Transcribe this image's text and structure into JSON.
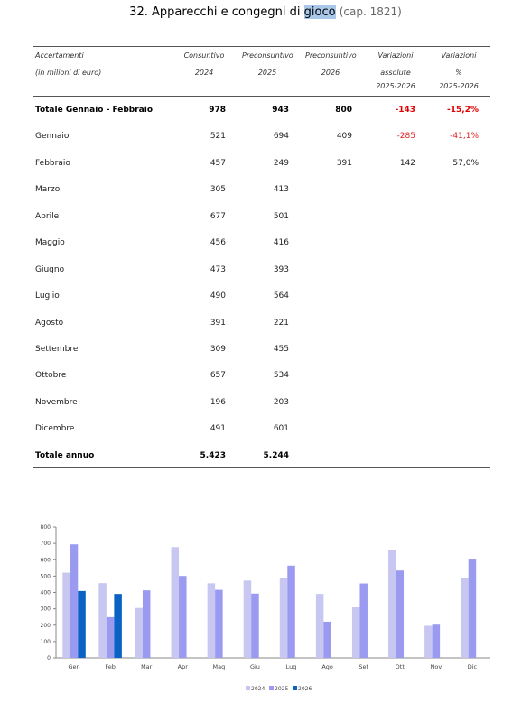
{
  "title": {
    "prefix": "32. Apparecchi e congegni di ",
    "highlight": "gioco",
    "cap": "(cap. 1821)"
  },
  "header": {
    "col0": [
      "Accertamenti",
      "(in milioni di euro)"
    ],
    "col1": [
      "Consuntivo",
      "2024"
    ],
    "col2": [
      "Preconsuntivo",
      "2025"
    ],
    "col3": [
      "Preconsuntivo",
      "2026"
    ],
    "col4": [
      "Variazioni",
      "assolute",
      "2025-2026"
    ],
    "col5": [
      "Variazioni",
      "%",
      "2025-2026"
    ]
  },
  "rows": [
    {
      "label": "Totale Gennaio - Febbraio",
      "c1": "978",
      "c2": "943",
      "c3": "800",
      "c4": "-143",
      "c5": "-15,2%",
      "bold": true
    },
    {
      "label": "Gennaio",
      "c1": "521",
      "c2": "694",
      "c3": "409",
      "c4": "-285",
      "c5": "-41,1%"
    },
    {
      "label": "Febbraio",
      "c1": "457",
      "c2": "249",
      "c3": "391",
      "c4": "142",
      "c5": "57,0%"
    },
    {
      "label": "Marzo",
      "c1": "305",
      "c2": "413"
    },
    {
      "label": "Aprile",
      "c1": "677",
      "c2": "501"
    },
    {
      "label": "Maggio",
      "c1": "456",
      "c2": "416"
    },
    {
      "label": "Giugno",
      "c1": "473",
      "c2": "393"
    },
    {
      "label": "Luglio",
      "c1": "490",
      "c2": "564"
    },
    {
      "label": "Agosto",
      "c1": "391",
      "c2": "221"
    },
    {
      "label": "Settembre",
      "c1": "309",
      "c2": "455"
    },
    {
      "label": "Ottobre",
      "c1": "657",
      "c2": "534"
    },
    {
      "label": "Novembre",
      "c1": "196",
      "c2": "203"
    },
    {
      "label": "Dicembre",
      "c1": "491",
      "c2": "601"
    },
    {
      "label": "Totale annuo",
      "c1": "5.423",
      "c2": "5.244",
      "bold": true
    }
  ],
  "chart_data": {
    "type": "bar",
    "categories": [
      "Gen",
      "Feb",
      "Mar",
      "Apr",
      "Mag",
      "Giu",
      "Lug",
      "Ago",
      "Set",
      "Ott",
      "Nov",
      "Dic"
    ],
    "series": [
      {
        "name": "2024",
        "color": "#c7c7f2",
        "values": [
          521,
          457,
          305,
          677,
          456,
          473,
          490,
          391,
          309,
          657,
          196,
          491
        ]
      },
      {
        "name": "2025",
        "color": "#9a9af0",
        "values": [
          694,
          249,
          413,
          501,
          416,
          393,
          564,
          221,
          455,
          534,
          203,
          601
        ]
      },
      {
        "name": "2026",
        "color": "#0a63c4",
        "values": [
          409,
          391,
          null,
          null,
          null,
          null,
          null,
          null,
          null,
          null,
          null,
          null
        ]
      }
    ],
    "ylim": [
      0,
      800
    ],
    "yticks": [
      "0",
      "100",
      "200",
      "300",
      "400",
      "500",
      "600",
      "700",
      "800"
    ],
    "grid": false,
    "legend": "bottom"
  }
}
